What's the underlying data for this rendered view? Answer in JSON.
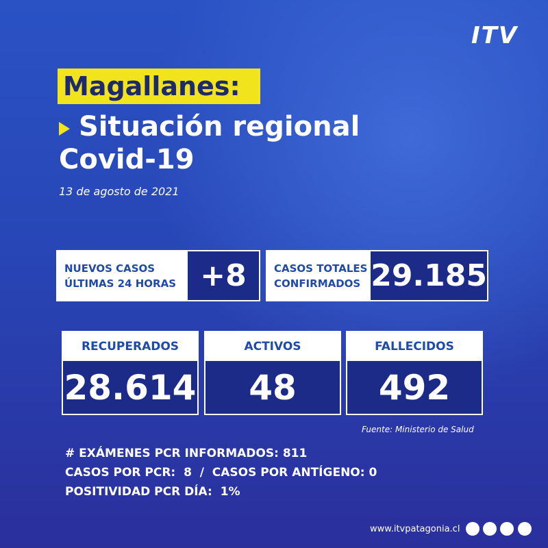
{
  "logo": "ITV",
  "header": {
    "region": "Magallanes:",
    "title_line1": "Situación regional",
    "title_line2": "Covid-19",
    "date": "13 de agosto de 2021"
  },
  "top_boxes": [
    {
      "label_line1": "NUEVOS CASOS",
      "label_line2": "ÚLTIMAS 24 HORAS",
      "value": "+8"
    },
    {
      "label_line1": "CASOS TOTALES",
      "label_line2": "CONFIRMADOS",
      "value": "29.185"
    }
  ],
  "stat_boxes": [
    {
      "label": "RECUPERADOS",
      "value": "28.614"
    },
    {
      "label": "ACTIVOS",
      "value": "48"
    },
    {
      "label": "FALLECIDOS",
      "value": "492"
    }
  ],
  "source": "Fuente: Ministerio de Salud",
  "details": [
    "# EXÁMENES PCR INFORMADOS: 811",
    "CASOS POR PCR:  8  /  CASOS POR ANTÍGENO: 0",
    "POSITIVIDAD PCR DÍA:  1%"
  ],
  "footer": {
    "url": "www.itvpatagonia.cl"
  }
}
